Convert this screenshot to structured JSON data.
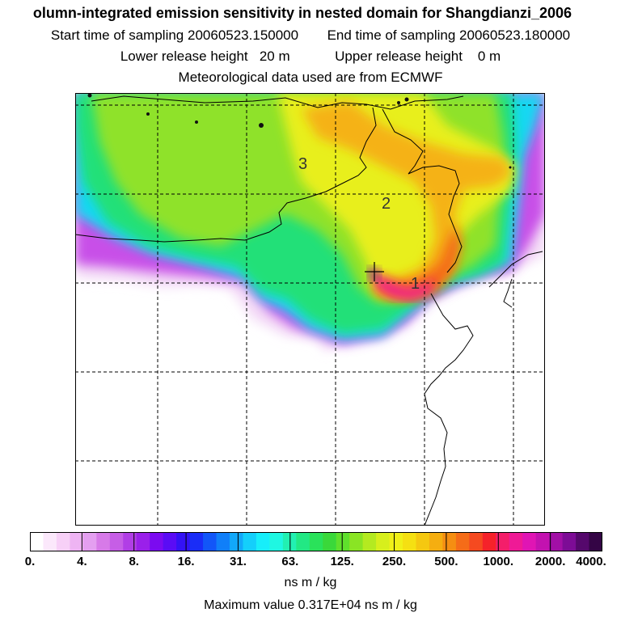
{
  "header": {
    "title": "olumn-integrated emission sensitivity in nested domain for Shangdianzi_2006",
    "start_label": "Start time of sampling",
    "start_value": "20060523.150000",
    "end_label": "End time of sampling",
    "end_value": "20060523.180000",
    "lower_label": "Lower release height",
    "lower_value": "20 m",
    "upper_label": "Upper release height",
    "upper_value": "0 m",
    "met_text": "Meteorological data used are from ECMWF"
  },
  "map": {
    "region_labels": [
      "1",
      "2",
      "3"
    ],
    "release_marker": "cross"
  },
  "colorbar": {
    "tick_labels": [
      "0.",
      "4.",
      "8.",
      "16.",
      "31.",
      "63.",
      "125.",
      "250.",
      "500.",
      "1000.",
      "2000.",
      "4000."
    ],
    "colors": [
      "#ffffff",
      "#fbe8fb",
      "#f7d0f7",
      "#eeb4f3",
      "#e49ff0",
      "#d77ae8",
      "#c65ee6",
      "#b13ee6",
      "#9a20ea",
      "#7b0bf0",
      "#5a0cf5",
      "#3412f5",
      "#1a2df7",
      "#1256f8",
      "#107ff9",
      "#12a8fa",
      "#14cffb",
      "#17eefa",
      "#1ff7e2",
      "#22f0b2",
      "#22e884",
      "#2ae25a",
      "#3ad83a",
      "#5fe02c",
      "#8ae424",
      "#b4ea20",
      "#d7ef1c",
      "#f0f018",
      "#f5e012",
      "#f5c810",
      "#f5ae10",
      "#f58e12",
      "#f56c18",
      "#f54a20",
      "#f5222a",
      "#f41e6a",
      "#ef1a96",
      "#e015b4",
      "#c312b0",
      "#a20fa6",
      "#7d0c96",
      "#55086c",
      "#340545"
    ],
    "unit": "ns m / kg",
    "max_value_text": "Maximum value  0.317E+04 ns m / kg"
  }
}
